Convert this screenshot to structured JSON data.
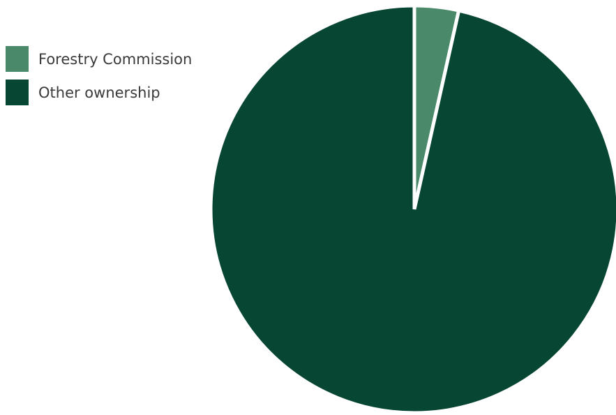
{
  "chart_data": {
    "type": "pie",
    "title": "",
    "start_angle_deg": 0,
    "direction": "clockwise",
    "legend_position": "top-left",
    "slices": [
      {
        "label": "Forestry Commission",
        "value": 3.5,
        "color": "#4a8a6a"
      },
      {
        "label": "Other ownership",
        "value": 96.5,
        "color": "#074632"
      }
    ],
    "separator_color": "#ffffff"
  }
}
